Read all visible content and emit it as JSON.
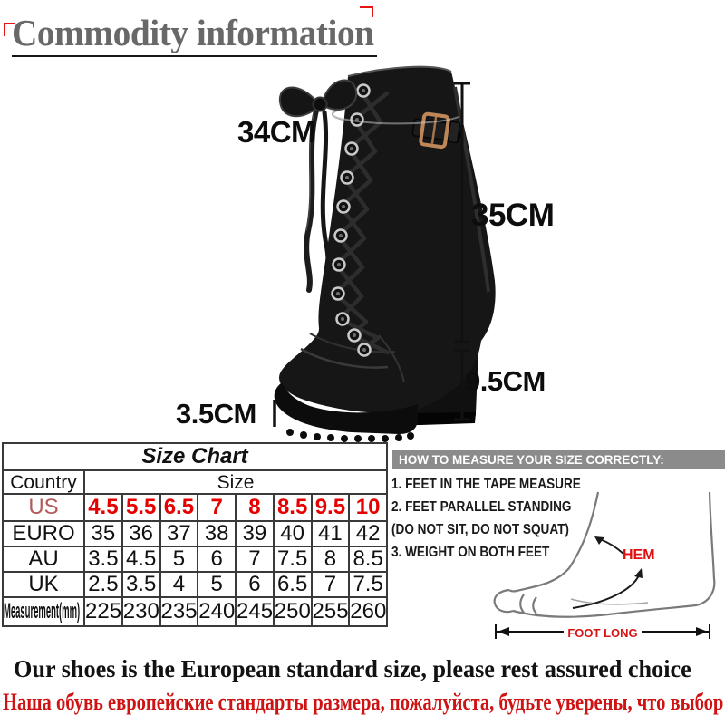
{
  "header": {
    "title": "Commodity information"
  },
  "boot": {
    "measurements": {
      "circumference": "34CM",
      "shaft_height": "35CM",
      "heel_height": "9.5CM",
      "platform_height": "3.5CM"
    }
  },
  "size_chart": {
    "title": "Size Chart",
    "country_header": "Country",
    "size_header": "Size",
    "rows": [
      {
        "label": "US",
        "highlight": true,
        "cells": [
          "4.5",
          "5.5",
          "6.5",
          "7",
          "8",
          "8.5",
          "9.5",
          "10"
        ]
      },
      {
        "label": "EURO",
        "cells": [
          "35",
          "36",
          "37",
          "38",
          "39",
          "40",
          "41",
          "42"
        ]
      },
      {
        "label": "AU",
        "cells": [
          "3.5",
          "4.5",
          "5",
          "6",
          "7",
          "7.5",
          "8",
          "8.5"
        ]
      },
      {
        "label": "UK",
        "cells": [
          "2.5",
          "3.5",
          "4",
          "5",
          "6",
          "6.5",
          "7",
          "7.5"
        ]
      },
      {
        "label": "Measurement(mm)",
        "small": true,
        "cells": [
          "225",
          "230",
          "235",
          "240",
          "245",
          "250",
          "255",
          "260"
        ]
      }
    ]
  },
  "measure_guide": {
    "header": "HOW TO MEASURE YOUR SIZE CORRECTLY:",
    "steps": [
      "1. FEET IN THE TAPE MEASURE",
      "2. FEET PARALLEL STANDING",
      "(DO NOT SIT, DO NOT SQUAT)",
      "3. WEIGHT ON BOTH FEET"
    ],
    "hem_label": "HEM",
    "foot_long_label": "FOOT LONG"
  },
  "footer": {
    "line1": "Our shoes is the European standard size, please rest assured choice",
    "line2": "Наша обувь европейские стандарты размера, пожалуйста, будьте уверены, что выбор"
  },
  "colors": {
    "title_gray": "#686868",
    "size_red": "#e60000",
    "us_label_red": "#b35b5b",
    "panel_bar_gray": "#8b8b8b",
    "footer_red": "#cf1212",
    "hem_red": "#e01010",
    "buckle_gold": "#bf8758"
  }
}
